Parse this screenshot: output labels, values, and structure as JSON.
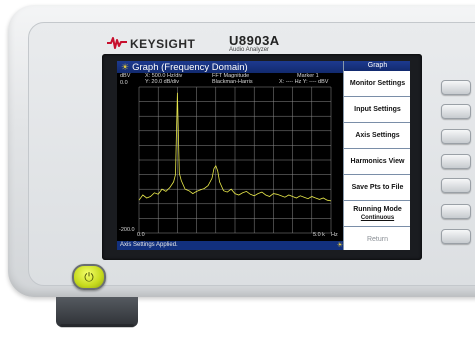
{
  "device": {
    "brand": "KEYSIGHT",
    "model": "U8903A",
    "model_subtitle": "Audio Analyzer"
  },
  "screen": {
    "title": "Graph (Frequency Domain)",
    "y_unit": "dBV",
    "y_top": "0.0",
    "x_scale": "X: 500.0 Hz/div",
    "y_scale": "Y: 20.0 dB/div",
    "measurement": "FFT Magnitude",
    "window": "Blackman-Harris",
    "marker": "Marker 1",
    "marker_readout": "X: ---- Hz Y: ---- dBV",
    "y_bottom": "-200.0",
    "x_start": "0.0",
    "x_end": "5.0 k",
    "x_unit": "Hz",
    "status": "Axis Settings Applied."
  },
  "softkeys": {
    "header": "Graph",
    "items": [
      {
        "label": "Monitor Settings"
      },
      {
        "label": "Input Settings"
      },
      {
        "label": "Axis Settings"
      },
      {
        "label": "Harmonics View"
      },
      {
        "label": "Save Pts to File"
      },
      {
        "label": "Running Mode",
        "sub": "Continuous"
      },
      {
        "label": "Return",
        "disabled": true
      }
    ]
  },
  "colors": {
    "trace": "#e8e84a",
    "grid": "#8c8c8c",
    "title_bar": "#1a3585",
    "power_button": "#c6da1d"
  },
  "icons": {
    "brand_logo": "keysight-wave-icon",
    "title": "sun-icon",
    "power": "power-icon"
  },
  "chart_data": {
    "type": "line",
    "title": "Graph (Frequency Domain)",
    "xlabel": "Hz",
    "ylabel": "dBV",
    "xlim": [
      0,
      5000
    ],
    "ylim": [
      -200,
      0
    ],
    "grid": true,
    "x_divisions": 10,
    "y_divisions": 10,
    "series": [
      {
        "x": [
          0,
          100,
          200,
          300,
          400,
          500,
          600,
          700,
          800,
          900,
          950,
          1000,
          1050,
          1100,
          1200,
          1300,
          1400,
          1500,
          1600,
          1700,
          1800,
          1900,
          1950,
          2000,
          2050,
          2100,
          2200,
          2300,
          2400,
          2500,
          2600,
          2700,
          2800,
          2900,
          3000,
          3100,
          3200,
          3300,
          3400,
          3500,
          3600,
          3700,
          3800,
          3900,
          4000,
          4100,
          4200,
          4300,
          4400,
          4500,
          4600,
          4700,
          4800,
          4900,
          5000
        ],
        "values": [
          -155,
          -148,
          -152,
          -150,
          -145,
          -147,
          -140,
          -143,
          -138,
          -130,
          -120,
          -8,
          -118,
          -128,
          -140,
          -142,
          -146,
          -143,
          -141,
          -139,
          -135,
          -125,
          -112,
          -108,
          -115,
          -130,
          -142,
          -144,
          -140,
          -146,
          -148,
          -145,
          -143,
          -147,
          -149,
          -146,
          -144,
          -148,
          -150,
          -146,
          -147,
          -149,
          -151,
          -148,
          -150,
          -152,
          -149,
          -151,
          -153,
          -150,
          -152,
          -154,
          -152,
          -155,
          -156
        ]
      }
    ]
  }
}
